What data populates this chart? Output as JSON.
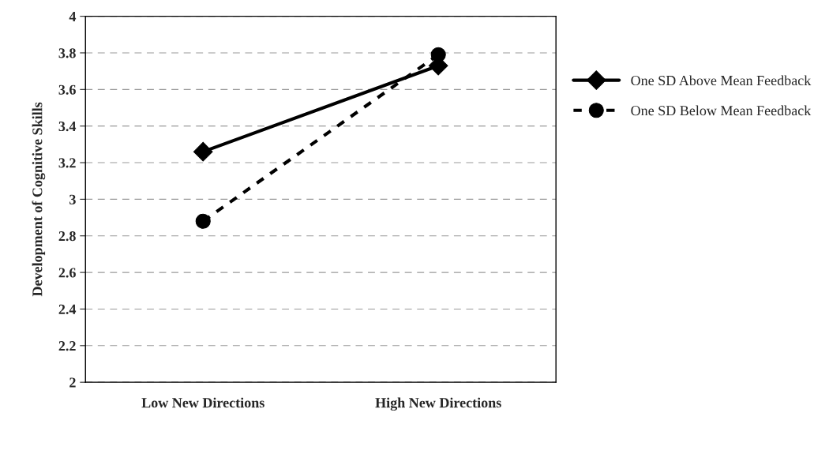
{
  "chart_data": {
    "type": "line",
    "ylabel": "Development of Cognitive Skills",
    "categories": [
      "Low New Directions",
      "High New Directions"
    ],
    "series": [
      {
        "name": "One SD Above Mean Feedback",
        "color": "#000000",
        "values": [
          3.26,
          3.73
        ],
        "marker": "diamond",
        "line_style": "solid"
      },
      {
        "name": "One SD Below Mean Feedback",
        "color": "#000000",
        "values": [
          2.88,
          3.79
        ],
        "marker": "circle",
        "line_style": "dashed"
      }
    ],
    "ylim": [
      2,
      4
    ],
    "yticks": [
      2,
      2.2,
      2.4,
      2.6,
      2.8,
      3,
      3.2,
      3.4,
      3.6,
      3.8,
      4
    ],
    "grid": "y",
    "legend": "right"
  }
}
